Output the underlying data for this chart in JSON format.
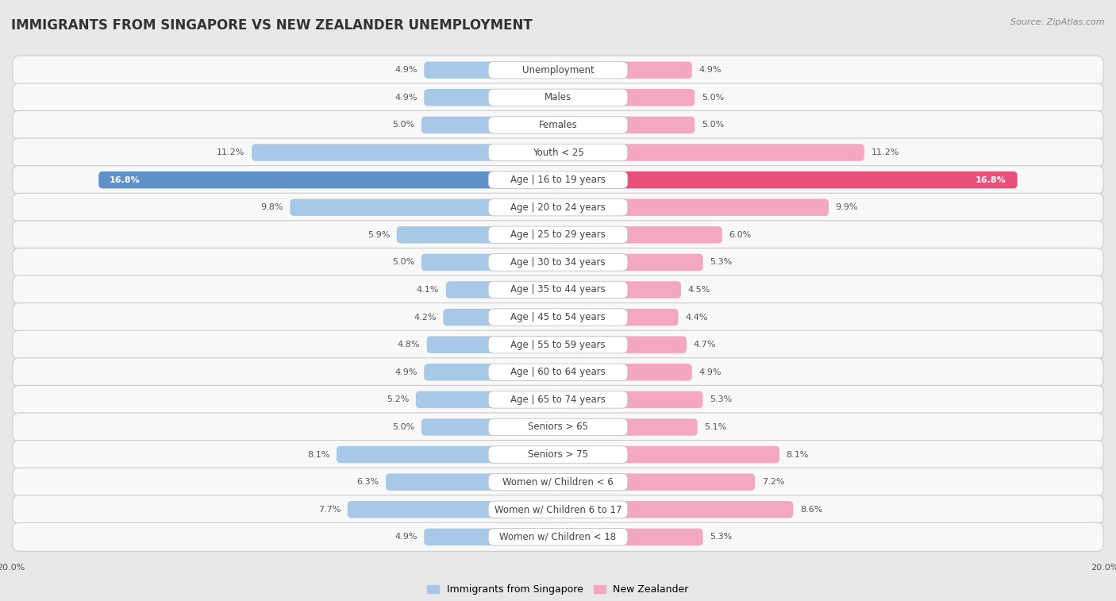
{
  "title": "IMMIGRANTS FROM SINGAPORE VS NEW ZEALANDER UNEMPLOYMENT",
  "source": "Source: ZipAtlas.com",
  "categories": [
    "Unemployment",
    "Males",
    "Females",
    "Youth < 25",
    "Age | 16 to 19 years",
    "Age | 20 to 24 years",
    "Age | 25 to 29 years",
    "Age | 30 to 34 years",
    "Age | 35 to 44 years",
    "Age | 45 to 54 years",
    "Age | 55 to 59 years",
    "Age | 60 to 64 years",
    "Age | 65 to 74 years",
    "Seniors > 65",
    "Seniors > 75",
    "Women w/ Children < 6",
    "Women w/ Children 6 to 17",
    "Women w/ Children < 18"
  ],
  "left_values": [
    4.9,
    4.9,
    5.0,
    11.2,
    16.8,
    9.8,
    5.9,
    5.0,
    4.1,
    4.2,
    4.8,
    4.9,
    5.2,
    5.0,
    8.1,
    6.3,
    7.7,
    4.9
  ],
  "right_values": [
    4.9,
    5.0,
    5.0,
    11.2,
    16.8,
    9.9,
    6.0,
    5.3,
    4.5,
    4.4,
    4.7,
    4.9,
    5.3,
    5.1,
    8.1,
    7.2,
    8.6,
    5.3
  ],
  "left_color": "#a8c8e8",
  "right_color": "#f4a8c0",
  "highlight_left_color": "#6090c8",
  "highlight_right_color": "#e8507a",
  "max_val": 20.0,
  "bar_height": 0.62,
  "bg_color": "#e8e8e8",
  "row_bg": "#f8f8f8",
  "legend_left": "Immigrants from Singapore",
  "legend_right": "New Zealander",
  "title_fontsize": 12,
  "label_fontsize": 8.5,
  "value_fontsize": 8.0,
  "source_fontsize": 8
}
